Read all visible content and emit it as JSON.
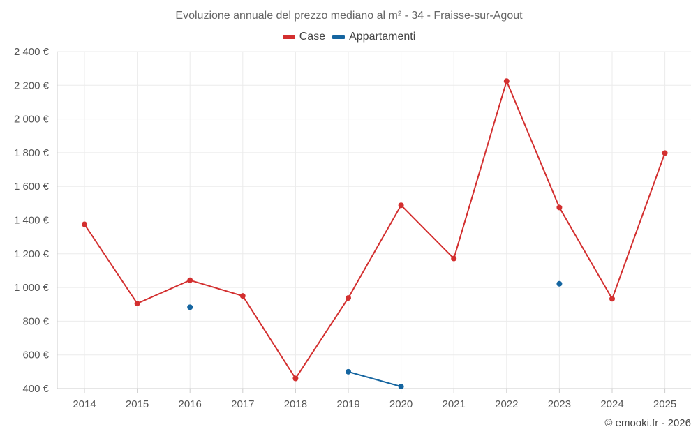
{
  "chart_data": {
    "type": "line",
    "title": "Evoluzione annuale del prezzo mediano al m² - 34 - Fraisse-sur-Agout",
    "xlabel": "",
    "ylabel": "",
    "categories": [
      "2014",
      "2015",
      "2016",
      "2017",
      "2018",
      "2019",
      "2020",
      "2021",
      "2022",
      "2023",
      "2024",
      "2025"
    ],
    "ylim": [
      400,
      2400
    ],
    "yticks": [
      400,
      600,
      800,
      1000,
      1200,
      1400,
      1600,
      1800,
      2000,
      2200,
      2400
    ],
    "ytick_labels": [
      "400 €",
      "600 €",
      "800 €",
      "1 000 €",
      "1 200 €",
      "1 400 €",
      "1 600 €",
      "1 800 €",
      "2 000 €",
      "2 200 €",
      "2 400 €"
    ],
    "grid": true,
    "legend_position": "top-center",
    "series": [
      {
        "name": "Case",
        "color": "#d32f2f",
        "values": [
          1375,
          905,
          1043,
          950,
          460,
          938,
          1488,
          1172,
          2225,
          1475,
          933,
          1798
        ]
      },
      {
        "name": "Appartamenti",
        "color": "#1565a0",
        "values": [
          null,
          null,
          883,
          null,
          null,
          500,
          412,
          null,
          null,
          1022,
          null,
          null
        ]
      }
    ]
  },
  "credit": "© emooki.fr - 2026"
}
